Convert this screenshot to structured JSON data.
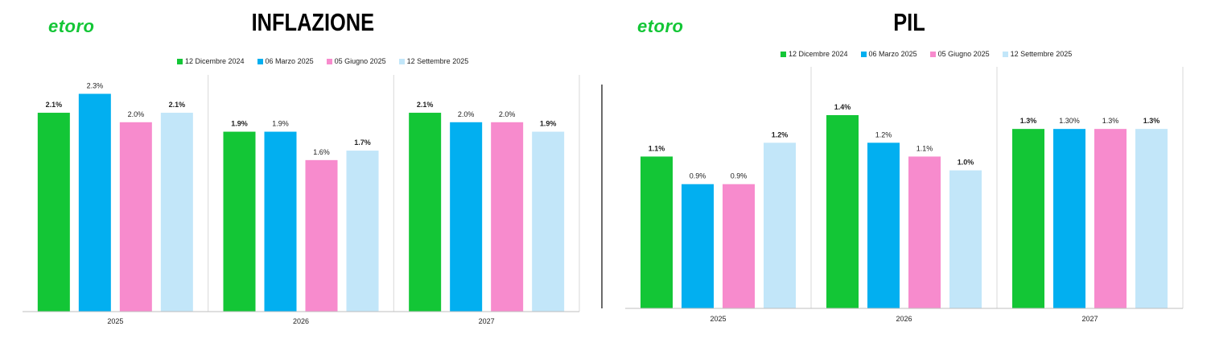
{
  "colors": [
    "#13c636",
    "#02aff0",
    "#f78bcd",
    "#c2e6f9"
  ],
  "logo_text": "etoro",
  "chart_data": [
    {
      "type": "bar",
      "title": "INFLAZIONE",
      "categories": [
        "2025",
        "2026",
        "2027"
      ],
      "legend_position": "top",
      "grid": false,
      "ylim": [
        0,
        2.5
      ],
      "series": [
        {
          "name": "12 Dicembre 2024",
          "values": [
            2.1,
            1.9,
            2.1
          ],
          "labels": [
            "2.1%",
            "1.9%",
            "2.1%"
          ],
          "bold": true
        },
        {
          "name": "06 Marzo 2025",
          "values": [
            2.3,
            1.9,
            2.0
          ],
          "labels": [
            "2.3%",
            "1.9%",
            "2.0%"
          ],
          "bold": false
        },
        {
          "name": "05 Giugno 2025",
          "values": [
            2.0,
            1.6,
            2.0
          ],
          "labels": [
            "2.0%",
            "1.6%",
            "2.0%"
          ],
          "bold": false
        },
        {
          "name": "12 Settembre 2025",
          "values": [
            2.1,
            1.7,
            1.9
          ],
          "labels": [
            "2.1%",
            "1.7%",
            "1.9%"
          ],
          "bold": true
        }
      ]
    },
    {
      "type": "bar",
      "title": "PIL",
      "categories": [
        "2025",
        "2026",
        "2027"
      ],
      "legend_position": "top",
      "grid": false,
      "ylim": [
        0,
        1.75
      ],
      "series": [
        {
          "name": "12 Dicembre 2024",
          "values": [
            1.1,
            1.4,
            1.3
          ],
          "labels": [
            "1.1%",
            "1.4%",
            "1.3%"
          ],
          "bold": true
        },
        {
          "name": "06 Marzo 2025",
          "values": [
            0.9,
            1.2,
            1.3
          ],
          "labels": [
            "0.9%",
            "1.2%",
            "1.30%"
          ],
          "bold": false
        },
        {
          "name": "05 Giugno 2025",
          "values": [
            0.9,
            1.1,
            1.3
          ],
          "labels": [
            "0.9%",
            "1.1%",
            "1.3%"
          ],
          "bold": false
        },
        {
          "name": "12 Settembre 2025",
          "values": [
            1.2,
            1.0,
            1.3
          ],
          "labels": [
            "1.2%",
            "1.0%",
            "1.3%"
          ],
          "bold": true
        }
      ]
    }
  ]
}
